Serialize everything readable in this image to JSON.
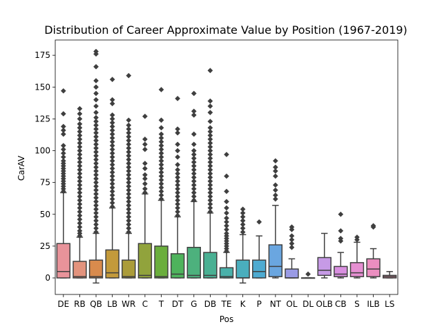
{
  "chart_data": {
    "type": "boxplot",
    "title": "Distribution of Career Approximate Value by Position (1967-2019)",
    "xlabel": "Pos",
    "ylabel": "CarAV",
    "ylim": [
      -13,
      187
    ],
    "yticks": [
      0,
      25,
      50,
      75,
      100,
      125,
      150,
      175
    ],
    "grid": false,
    "legend": "none",
    "categories": [
      "DE",
      "RB",
      "QB",
      "LB",
      "WR",
      "C",
      "T",
      "DT",
      "G",
      "DB",
      "TE",
      "K",
      "P",
      "NT",
      "OL",
      "DL",
      "OLB",
      "CB",
      "S",
      "ILB",
      "LS"
    ],
    "colors": [
      "#e8939a",
      "#e3937d",
      "#d98b4d",
      "#c39a3b",
      "#ab9c3a",
      "#91a33c",
      "#6aae3c",
      "#4eb35c",
      "#4db17d",
      "#4ab093",
      "#4ab1aa",
      "#4aaebd",
      "#4eabd1",
      "#6aa6e0",
      "#9a9be5",
      "#b48fe3",
      "#c69ae6",
      "#d98fe0",
      "#e68fd2",
      "#eb8ec0",
      "#ea93ab"
    ],
    "boxes": [
      {
        "q1": 0,
        "median": 5,
        "q3": 27,
        "whislo": 0,
        "whishi": 67,
        "outliers": [
          68,
          70,
          72,
          74,
          76,
          78,
          80,
          82,
          84,
          86,
          88,
          90,
          92,
          95,
          98,
          101,
          104,
          113,
          116,
          119,
          129,
          147
        ]
      },
      {
        "q1": 0,
        "median": 1,
        "q3": 13,
        "whislo": 0,
        "whishi": 32,
        "outliers": [
          33,
          35,
          37,
          40,
          43,
          46,
          49,
          52,
          55,
          58,
          61,
          64,
          67,
          70,
          73,
          76,
          79,
          82,
          85,
          88,
          91,
          94,
          97,
          100,
          103,
          106,
          109,
          112,
          115,
          118,
          121,
          125,
          129,
          133
        ]
      },
      {
        "q1": 0,
        "median": 1,
        "q3": 14,
        "whislo": -4,
        "whishi": 35,
        "outliers": [
          36,
          39,
          42,
          45,
          48,
          51,
          54,
          57,
          60,
          63,
          66,
          69,
          72,
          75,
          78,
          81,
          84,
          87,
          90,
          93,
          96,
          99,
          102,
          105,
          108,
          111,
          114,
          117,
          120,
          123,
          126,
          130,
          135,
          140,
          145,
          150,
          155,
          166,
          176,
          178
        ]
      },
      {
        "q1": 0,
        "median": 4,
        "q3": 22,
        "whislo": 0,
        "whishi": 55,
        "outliers": [
          56,
          59,
          62,
          65,
          68,
          71,
          74,
          77,
          80,
          83,
          86,
          89,
          92,
          95,
          98,
          101,
          104,
          107,
          110,
          113,
          116,
          119,
          122,
          125,
          128,
          137,
          140,
          156
        ]
      },
      {
        "q1": 0,
        "median": 1,
        "q3": 14,
        "whislo": 0,
        "whishi": 35,
        "outliers": [
          36,
          39,
          42,
          45,
          48,
          51,
          54,
          57,
          60,
          63,
          66,
          69,
          72,
          75,
          78,
          81,
          84,
          87,
          90,
          93,
          96,
          99,
          102,
          105,
          108,
          111,
          114,
          117,
          120,
          124,
          159
        ]
      },
      {
        "q1": 0,
        "median": 2,
        "q3": 27,
        "whislo": 0,
        "whishi": 66,
        "outliers": [
          67,
          70,
          74,
          78,
          81,
          86,
          90,
          101,
          105,
          109,
          127
        ]
      },
      {
        "q1": 0,
        "median": 1,
        "q3": 25,
        "whislo": 0,
        "whishi": 61,
        "outliers": [
          62,
          65,
          68,
          71,
          74,
          77,
          80,
          83,
          86,
          89,
          92,
          95,
          98,
          101,
          104,
          107,
          110,
          113,
          118,
          124,
          148
        ]
      },
      {
        "q1": 0,
        "median": 3,
        "q3": 19,
        "whislo": 0,
        "whishi": 48,
        "outliers": [
          49,
          52,
          55,
          58,
          61,
          64,
          67,
          70,
          73,
          76,
          79,
          82,
          85,
          89,
          95,
          100,
          105,
          114,
          117,
          141
        ]
      },
      {
        "q1": 0,
        "median": 2,
        "q3": 24,
        "whislo": 0,
        "whishi": 60,
        "outliers": [
          61,
          64,
          67,
          70,
          73,
          76,
          79,
          82,
          85,
          88,
          91,
          94,
          97,
          100,
          105,
          113,
          128,
          131,
          145
        ]
      },
      {
        "q1": 0,
        "median": 2,
        "q3": 20,
        "whislo": 0,
        "whishi": 51,
        "outliers": [
          52,
          55,
          58,
          61,
          64,
          67,
          70,
          73,
          76,
          79,
          82,
          85,
          88,
          91,
          94,
          97,
          100,
          103,
          106,
          109,
          112,
          115,
          118,
          123,
          130,
          135,
          139,
          163
        ]
      },
      {
        "q1": 0,
        "median": 1,
        "q3": 8,
        "whislo": 0,
        "whishi": 20,
        "outliers": [
          21,
          23,
          25,
          27,
          29,
          31,
          33,
          35,
          38,
          41,
          44,
          47,
          51,
          55,
          60,
          68,
          80,
          97
        ]
      },
      {
        "q1": 0,
        "median": 0,
        "q3": 14,
        "whislo": -4,
        "whishi": 34,
        "outliers": [
          36,
          39,
          42,
          45,
          48,
          51,
          54
        ]
      },
      {
        "q1": 0,
        "median": 5,
        "q3": 14,
        "whislo": 0,
        "whishi": 33,
        "outliers": [
          44
        ]
      },
      {
        "q1": 1,
        "median": 9,
        "q3": 26,
        "whislo": 0,
        "whishi": 57,
        "outliers": [
          62,
          65,
          69,
          73,
          80,
          84,
          87,
          92
        ]
      },
      {
        "q1": 0,
        "median": 0,
        "q3": 7,
        "whislo": 0,
        "whishi": 15,
        "outliers": [
          24,
          27,
          30,
          33,
          38,
          40
        ]
      },
      {
        "q1": 0,
        "median": 0,
        "q3": 0,
        "whislo": 0,
        "whishi": 0,
        "outliers": [
          3
        ]
      },
      {
        "q1": 2,
        "median": 6,
        "q3": 16,
        "whislo": 0,
        "whishi": 35,
        "outliers": []
      },
      {
        "q1": 1,
        "median": 3,
        "q3": 9,
        "whislo": 0,
        "whishi": 20,
        "outliers": [
          29,
          31,
          37,
          50
        ]
      },
      {
        "q1": 1,
        "median": 4,
        "q3": 12,
        "whislo": 0,
        "whishi": 28,
        "outliers": [
          30,
          32
        ]
      },
      {
        "q1": 1,
        "median": 7,
        "q3": 15,
        "whislo": 0,
        "whishi": 23,
        "outliers": [
          40,
          41
        ]
      },
      {
        "q1": 0,
        "median": 1,
        "q3": 2,
        "whislo": 0,
        "whishi": 5,
        "outliers": []
      }
    ]
  }
}
